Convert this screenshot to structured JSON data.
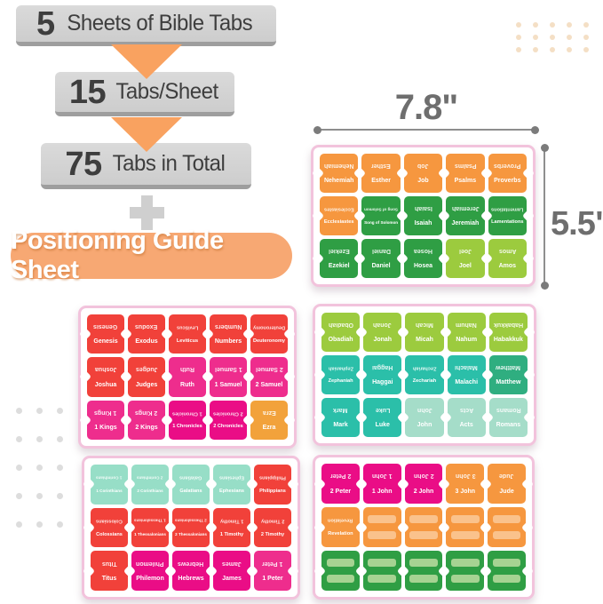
{
  "infographic": {
    "steps": [
      {
        "number": "5",
        "text": "Sheets of Bible Tabs"
      },
      {
        "number": "15",
        "text": "Tabs/Sheet"
      },
      {
        "number": "75",
        "text": "Tabs in Total"
      }
    ],
    "banner": "Positioning Guide Sheet"
  },
  "dimensions": {
    "width": "7.8\"",
    "height": "5.5\""
  },
  "palette": {
    "orange": "#F6973F",
    "orange_alt": "#F2A23B",
    "dark_green": "#2F9E44",
    "lime": "#9CCB3E",
    "red": "#F1413A",
    "magenta": "#EE2D8D",
    "deep_pink": "#EA0D86",
    "teal": "#2BBFA9",
    "teal_green": "#2FAE80",
    "seafoam": "#A5DDC9",
    "mint": "#97DEC7",
    "blank_bar_orange": "#FAC28C",
    "blank_bar_green": "#A6D392",
    "sheet_border": "#F2C3DC",
    "arrow_orange": "#F9A260",
    "banner_orange": "#F7A873",
    "dots_peach": "#F4DFC5",
    "dots_gray": "#DDDDDD"
  },
  "sheets": [
    {
      "name": "sheet-old-testament-wisdom-prophets",
      "tabs": [
        {
          "label": "Nehemiah",
          "color": "orange"
        },
        {
          "label": "Esther",
          "color": "orange"
        },
        {
          "label": "Job",
          "color": "orange"
        },
        {
          "label": "Psalms",
          "color": "orange"
        },
        {
          "label": "Proverbs",
          "color": "orange"
        },
        {
          "label": "Ecclesiastes",
          "color": "orange"
        },
        {
          "label": "Song of Solomon",
          "color": "dark_green"
        },
        {
          "label": "Isaiah",
          "color": "dark_green"
        },
        {
          "label": "Jeremiah",
          "color": "dark_green"
        },
        {
          "label": "Lamentations",
          "color": "dark_green"
        },
        {
          "label": "Ezekiel",
          "color": "dark_green"
        },
        {
          "label": "Daniel",
          "color": "dark_green"
        },
        {
          "label": "Hosea",
          "color": "dark_green"
        },
        {
          "label": "Joel",
          "color": "lime"
        },
        {
          "label": "Amos",
          "color": "lime"
        }
      ]
    },
    {
      "name": "sheet-pentateuch-history",
      "tabs": [
        {
          "label": "Genesis",
          "color": "red"
        },
        {
          "label": "Exodus",
          "color": "red"
        },
        {
          "label": "Leviticus",
          "color": "red"
        },
        {
          "label": "Numbers",
          "color": "red"
        },
        {
          "label": "Deuteronomy",
          "color": "red"
        },
        {
          "label": "Joshua",
          "color": "red"
        },
        {
          "label": "Judges",
          "color": "red"
        },
        {
          "label": "Ruth",
          "color": "magenta"
        },
        {
          "label": "1 Samuel",
          "color": "magenta"
        },
        {
          "label": "2 Samuel",
          "color": "magenta"
        },
        {
          "label": "1 Kings",
          "color": "magenta"
        },
        {
          "label": "2 Kings",
          "color": "magenta"
        },
        {
          "label": "1 Chronicles",
          "color": "deep_pink"
        },
        {
          "label": "2 Chronicles",
          "color": "deep_pink"
        },
        {
          "label": "Ezra",
          "color": "orange_alt"
        }
      ]
    },
    {
      "name": "sheet-minor-prophets-gospels",
      "tabs": [
        {
          "label": "Obadiah",
          "color": "lime"
        },
        {
          "label": "Jonah",
          "color": "lime"
        },
        {
          "label": "Micah",
          "color": "lime"
        },
        {
          "label": "Nahum",
          "color": "lime"
        },
        {
          "label": "Habakkuk",
          "color": "lime"
        },
        {
          "label": "Zephaniah",
          "color": "teal"
        },
        {
          "label": "Haggai",
          "color": "teal"
        },
        {
          "label": "Zechariah",
          "color": "teal"
        },
        {
          "label": "Malachi",
          "color": "teal"
        },
        {
          "label": "Matthew",
          "color": "teal_green"
        },
        {
          "label": "Mark",
          "color": "teal"
        },
        {
          "label": "Luke",
          "color": "teal"
        },
        {
          "label": "John",
          "color": "seafoam"
        },
        {
          "label": "Acts",
          "color": "seafoam"
        },
        {
          "label": "Romans",
          "color": "seafoam"
        }
      ]
    },
    {
      "name": "sheet-epistles-1",
      "tabs": [
        {
          "label": "1 Corinthians",
          "color": "mint"
        },
        {
          "label": "2 Corinthians",
          "color": "mint"
        },
        {
          "label": "Galatians",
          "color": "mint"
        },
        {
          "label": "Ephesians",
          "color": "mint"
        },
        {
          "label": "Philippians",
          "color": "red"
        },
        {
          "label": "Colossians",
          "color": "red"
        },
        {
          "label": "1 Thessalonians",
          "color": "red"
        },
        {
          "label": "2 Thessalonians",
          "color": "red"
        },
        {
          "label": "1 Timothy",
          "color": "red"
        },
        {
          "label": "2 Timothy",
          "color": "red"
        },
        {
          "label": "Titus",
          "color": "red"
        },
        {
          "label": "Philemon",
          "color": "deep_pink"
        },
        {
          "label": "Hebrews",
          "color": "deep_pink"
        },
        {
          "label": "James",
          "color": "deep_pink"
        },
        {
          "label": "1 Peter",
          "color": "magenta"
        }
      ]
    },
    {
      "name": "sheet-epistles-2-blanks",
      "tabs": [
        {
          "label": "2 Peter",
          "color": "deep_pink"
        },
        {
          "label": "1 John",
          "color": "deep_pink"
        },
        {
          "label": "2 John",
          "color": "deep_pink"
        },
        {
          "label": "3 John",
          "color": "orange"
        },
        {
          "label": "Jude",
          "color": "orange"
        },
        {
          "label": "Revelation",
          "color": "orange"
        },
        {
          "label": "",
          "color": "orange",
          "blank": true,
          "bar": "blank_bar_orange"
        },
        {
          "label": "",
          "color": "orange",
          "blank": true,
          "bar": "blank_bar_orange"
        },
        {
          "label": "",
          "color": "orange",
          "blank": true,
          "bar": "blank_bar_orange"
        },
        {
          "label": "",
          "color": "orange",
          "blank": true,
          "bar": "blank_bar_orange"
        },
        {
          "label": "",
          "color": "dark_green",
          "blank": true,
          "bar": "blank_bar_green"
        },
        {
          "label": "",
          "color": "dark_green",
          "blank": true,
          "bar": "blank_bar_green"
        },
        {
          "label": "",
          "color": "dark_green",
          "blank": true,
          "bar": "blank_bar_green"
        },
        {
          "label": "",
          "color": "dark_green",
          "blank": true,
          "bar": "blank_bar_green"
        },
        {
          "label": "",
          "color": "dark_green",
          "blank": true,
          "bar": "blank_bar_green"
        }
      ]
    }
  ],
  "decor": {
    "peach_dots": {
      "cols": 5,
      "rows": 3,
      "color_key": "dots_peach"
    },
    "gray_dots": {
      "cols": 3,
      "rows": 5,
      "color_key": "dots_gray"
    }
  }
}
